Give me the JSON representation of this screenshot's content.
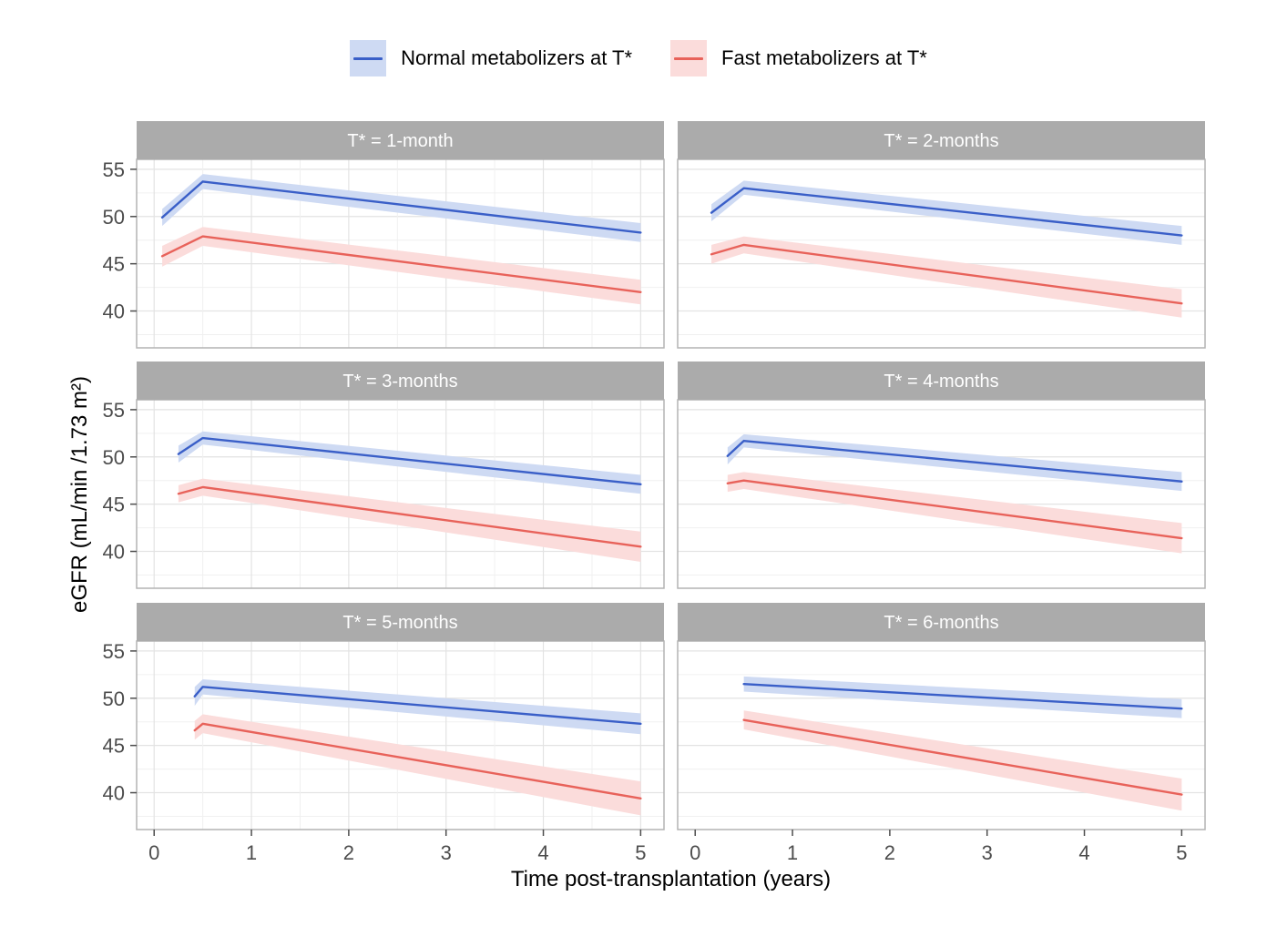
{
  "figure": {
    "background": "#FFFFFF"
  },
  "chart_data": {
    "type": "line",
    "title": "",
    "xlabel": "Time post-transplantation (years)",
    "ylabel": "eGFR (mL/min /1.73 m²)",
    "x_ticks": [
      0,
      1,
      2,
      3,
      4,
      5
    ],
    "y_ticks": [
      55,
      50,
      45,
      40
    ],
    "y_minor_gridlines": [
      37.5,
      42.5,
      47.5,
      52.5
    ],
    "x_gridline_step": 0.5,
    "xlim": [
      -0.18,
      5.24
    ],
    "ylim": [
      36.1,
      56.05
    ],
    "grid": true,
    "legend_position": "top",
    "legend": {
      "items": [
        {
          "label": "Normal metabolizers at T*",
          "line_color": "#3A5FC8",
          "fill_color": "#CEDAF3"
        },
        {
          "label": "Fast metabolizers at T*",
          "line_color": "#E8625A",
          "fill_color": "#FBDCDB"
        }
      ]
    },
    "facets": [
      {
        "title": "T* = 1-month",
        "x_gridlines": true,
        "series": [
          {
            "name": "Normal metabolizers at T*",
            "x": [
              0.083,
              0.5,
              5
            ],
            "y": [
              49.9,
              53.7,
              48.3
            ],
            "lower": [
              49.0,
              52.9,
              47.3
            ],
            "upper": [
              50.8,
              54.5,
              49.3
            ]
          },
          {
            "name": "Fast metabolizers at T*",
            "x": [
              0.083,
              0.5,
              5
            ],
            "y": [
              45.8,
              47.9,
              42.0
            ],
            "lower": [
              44.7,
              46.9,
              40.7
            ],
            "upper": [
              46.9,
              48.9,
              43.3
            ]
          }
        ]
      },
      {
        "title": "T* = 2-months",
        "x_gridlines": false,
        "series": [
          {
            "name": "Normal metabolizers at T*",
            "x": [
              0.167,
              0.5,
              5
            ],
            "y": [
              50.4,
              53.0,
              48.0
            ],
            "lower": [
              49.5,
              52.3,
              47.0
            ],
            "upper": [
              51.3,
              53.8,
              49.0
            ]
          },
          {
            "name": "Fast metabolizers at T*",
            "x": [
              0.167,
              0.5,
              5
            ],
            "y": [
              46.0,
              47.0,
              40.8
            ],
            "lower": [
              45.0,
              46.1,
              39.3
            ],
            "upper": [
              47.0,
              47.9,
              42.3
            ]
          }
        ]
      },
      {
        "title": "T* = 3-months",
        "x_gridlines": true,
        "series": [
          {
            "name": "Normal metabolizers at T*",
            "x": [
              0.25,
              0.5,
              5
            ],
            "y": [
              50.3,
              52.0,
              47.1
            ],
            "lower": [
              49.4,
              51.3,
              46.1
            ],
            "upper": [
              51.2,
              52.7,
              48.1
            ]
          },
          {
            "name": "Fast metabolizers at T*",
            "x": [
              0.25,
              0.5,
              5
            ],
            "y": [
              46.1,
              46.8,
              40.5
            ],
            "lower": [
              45.2,
              45.9,
              38.9
            ],
            "upper": [
              47.0,
              47.7,
              42.1
            ]
          }
        ]
      },
      {
        "title": "T* = 4-months",
        "x_gridlines": false,
        "series": [
          {
            "name": "Normal metabolizers at T*",
            "x": [
              0.333,
              0.5,
              5
            ],
            "y": [
              50.1,
              51.7,
              47.4
            ],
            "lower": [
              49.2,
              51.0,
              46.4
            ],
            "upper": [
              51.0,
              52.4,
              48.4
            ]
          },
          {
            "name": "Fast metabolizers at T*",
            "x": [
              0.333,
              0.5,
              5
            ],
            "y": [
              47.2,
              47.5,
              41.4
            ],
            "lower": [
              46.3,
              46.6,
              39.8
            ],
            "upper": [
              48.1,
              48.4,
              43.0
            ]
          }
        ]
      },
      {
        "title": "T* = 5-months",
        "x_gridlines": true,
        "series": [
          {
            "name": "Normal metabolizers at T*",
            "x": [
              0.417,
              0.5,
              5
            ],
            "y": [
              50.2,
              51.2,
              47.3
            ],
            "lower": [
              49.2,
              50.4,
              46.2
            ],
            "upper": [
              51.2,
              52.0,
              48.4
            ]
          },
          {
            "name": "Fast metabolizers at T*",
            "x": [
              0.417,
              0.5,
              5
            ],
            "y": [
              46.6,
              47.3,
              39.4
            ],
            "lower": [
              45.6,
              46.3,
              37.6
            ],
            "upper": [
              47.6,
              48.3,
              41.2
            ]
          }
        ]
      },
      {
        "title": "T* = 6-months",
        "x_gridlines": false,
        "series": [
          {
            "name": "Normal metabolizers at T*",
            "x": [
              0.5,
              5
            ],
            "y": [
              51.5,
              48.9
            ],
            "lower": [
              50.7,
              47.9
            ],
            "upper": [
              52.3,
              49.9
            ]
          },
          {
            "name": "Fast metabolizers at T*",
            "x": [
              0.5,
              5
            ],
            "y": [
              47.7,
              39.8
            ],
            "lower": [
              46.7,
              38.1
            ],
            "upper": [
              48.7,
              41.5
            ]
          }
        ]
      }
    ]
  },
  "styles": {
    "strip_bg": "#ABABAB",
    "strip_text": "#FFFFFF",
    "panel_bg": "#FFFFFF",
    "panel_border": "#B3B3B3",
    "grid_major": "#E3E3E3",
    "grid_minor": "#F0F0F0",
    "tick_color": "#4D4D4D",
    "tick_label_color": "#4D4D4D",
    "axis_title_color": "#000000"
  }
}
